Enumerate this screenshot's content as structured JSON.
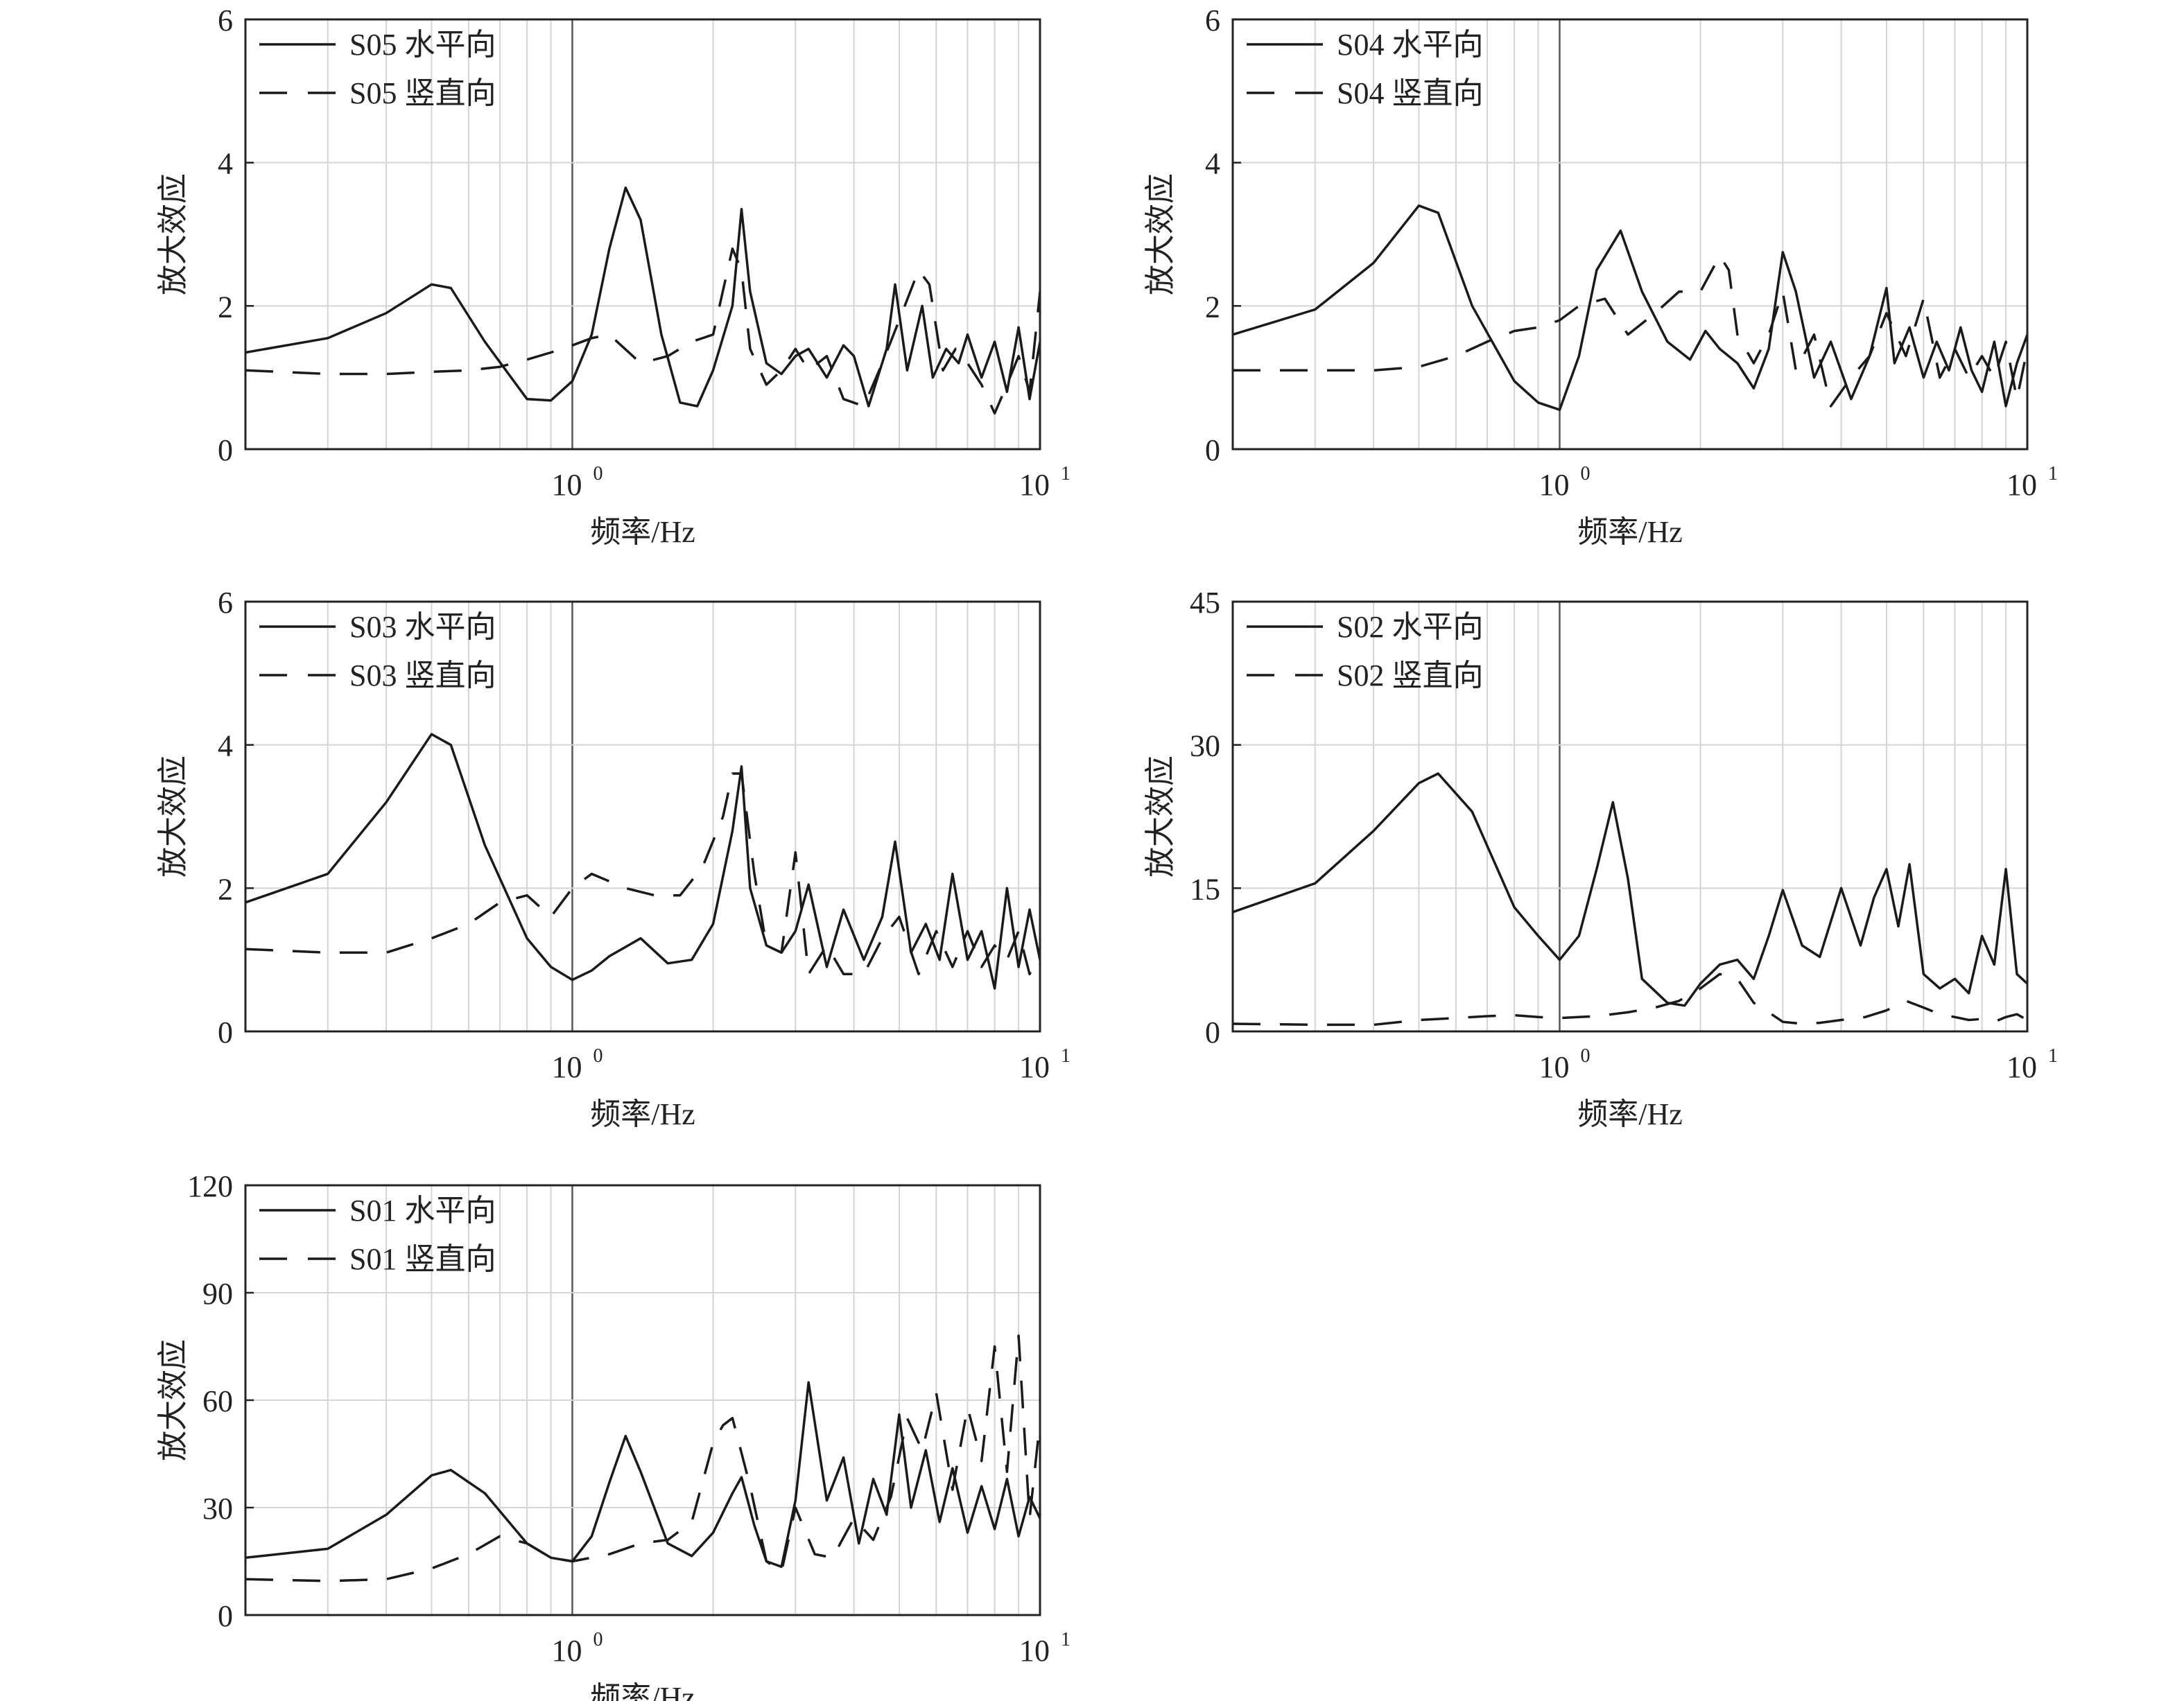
{
  "colors": {
    "line": "#1a1a1a",
    "grid": "#d4d4d4",
    "axis": "#222222"
  },
  "chart_data": [
    {
      "type": "line",
      "xscale": "log",
      "xlim": [
        0.2,
        10
      ],
      "ylim": [
        0,
        6
      ],
      "yticks": [
        "0",
        "2",
        "4",
        "6"
      ],
      "xticks": [
        {
          "base": "10",
          "exp": "0",
          "value": 1
        },
        {
          "base": "10",
          "exp": "1",
          "value": 10
        }
      ],
      "xlabel": "频率/Hz",
      "ylabel": "放大效应",
      "grid": true,
      "legend_position": "top-left",
      "series": [
        {
          "name": "S05 水平向",
          "style": "solid",
          "x": [
            0.2,
            0.3,
            0.4,
            0.5,
            0.55,
            0.65,
            0.8,
            0.9,
            1.0,
            1.1,
            1.2,
            1.3,
            1.4,
            1.55,
            1.7,
            1.85,
            2.0,
            2.2,
            2.3,
            2.4,
            2.6,
            2.8,
            3.0,
            3.2,
            3.5,
            3.8,
            4.0,
            4.3,
            4.7,
            4.9,
            5.2,
            5.6,
            5.9,
            6.3,
            6.7,
            7.0,
            7.5,
            8.0,
            8.5,
            9.0,
            9.5,
            10.0
          ],
          "y": [
            1.35,
            1.55,
            1.9,
            2.3,
            2.25,
            1.5,
            0.7,
            0.68,
            0.95,
            1.6,
            2.8,
            3.65,
            3.2,
            1.6,
            0.65,
            0.6,
            1.1,
            2.0,
            3.35,
            2.2,
            1.2,
            1.05,
            1.3,
            1.4,
            1.0,
            1.45,
            1.3,
            0.6,
            1.4,
            2.3,
            1.1,
            2.0,
            1.0,
            1.4,
            1.2,
            1.6,
            1.0,
            1.5,
            0.8,
            1.7,
            0.7,
            1.5
          ]
        },
        {
          "name": "S05 竖直向",
          "style": "dashed",
          "x": [
            0.2,
            0.3,
            0.4,
            0.5,
            0.6,
            0.7,
            0.8,
            0.9,
            1.0,
            1.1,
            1.2,
            1.4,
            1.6,
            1.8,
            2.0,
            2.2,
            2.3,
            2.4,
            2.6,
            2.8,
            3.0,
            3.2,
            3.5,
            3.8,
            4.2,
            4.6,
            5.0,
            5.5,
            5.8,
            6.2,
            6.6,
            7.0,
            7.5,
            8.0,
            8.5,
            9.0,
            9.5,
            10.0
          ],
          "y": [
            1.1,
            1.05,
            1.05,
            1.08,
            1.1,
            1.15,
            1.25,
            1.35,
            1.45,
            1.55,
            1.6,
            1.2,
            1.3,
            1.5,
            1.6,
            2.8,
            2.5,
            1.4,
            0.9,
            1.1,
            1.4,
            1.1,
            1.3,
            0.7,
            0.6,
            1.2,
            1.8,
            2.5,
            2.3,
            1.1,
            1.4,
            1.2,
            0.9,
            0.5,
            0.9,
            1.3,
            0.8,
            2.2
          ]
        }
      ]
    },
    {
      "type": "line",
      "xscale": "log",
      "xlim": [
        0.2,
        10
      ],
      "ylim": [
        0,
        6
      ],
      "yticks": [
        "0",
        "2",
        "4",
        "6"
      ],
      "xticks": [
        {
          "base": "10",
          "exp": "0",
          "value": 1
        },
        {
          "base": "10",
          "exp": "1",
          "value": 10
        }
      ],
      "xlabel": "频率/Hz",
      "ylabel": "放大效应",
      "grid": true,
      "legend_position": "top-left",
      "series": [
        {
          "name": "S04 水平向",
          "style": "solid",
          "x": [
            0.2,
            0.3,
            0.4,
            0.5,
            0.55,
            0.65,
            0.8,
            0.9,
            1.0,
            1.1,
            1.2,
            1.35,
            1.5,
            1.7,
            1.9,
            2.05,
            2.2,
            2.4,
            2.6,
            2.8,
            3.0,
            3.2,
            3.5,
            3.8,
            4.2,
            4.6,
            5.0,
            5.2,
            5.6,
            6.0,
            6.4,
            6.8,
            7.2,
            7.6,
            8.0,
            8.5,
            9.0,
            9.5,
            10.0
          ],
          "y": [
            1.6,
            1.95,
            2.6,
            3.4,
            3.3,
            2.0,
            0.95,
            0.65,
            0.55,
            1.3,
            2.5,
            3.05,
            2.2,
            1.5,
            1.25,
            1.65,
            1.4,
            1.2,
            0.85,
            1.4,
            2.75,
            2.2,
            1.0,
            1.5,
            0.7,
            1.3,
            2.25,
            1.2,
            1.7,
            1.0,
            1.5,
            1.1,
            1.7,
            1.1,
            0.8,
            1.5,
            0.6,
            1.2,
            1.6
          ]
        },
        {
          "name": "S04 竖直向",
          "style": "dashed",
          "x": [
            0.2,
            0.3,
            0.4,
            0.5,
            0.6,
            0.7,
            0.8,
            0.9,
            1.0,
            1.1,
            1.25,
            1.4,
            1.6,
            1.8,
            2.0,
            2.2,
            2.3,
            2.4,
            2.6,
            2.8,
            3.0,
            3.2,
            3.5,
            3.8,
            4.2,
            4.6,
            5.0,
            5.5,
            6.0,
            6.5,
            7.0,
            7.5,
            8.0,
            8.5,
            9.0,
            9.5,
            10.0
          ],
          "y": [
            1.1,
            1.1,
            1.1,
            1.15,
            1.3,
            1.5,
            1.65,
            1.7,
            1.8,
            2.0,
            2.1,
            1.6,
            1.9,
            2.2,
            2.2,
            2.7,
            2.5,
            1.6,
            1.2,
            1.6,
            2.2,
            1.1,
            1.6,
            0.6,
            1.0,
            1.3,
            1.9,
            1.3,
            2.1,
            1.0,
            1.4,
            1.0,
            1.3,
            1.0,
            1.5,
            0.7,
            1.4
          ]
        }
      ]
    },
    {
      "type": "line",
      "xscale": "log",
      "xlim": [
        0.2,
        10
      ],
      "ylim": [
        0,
        6
      ],
      "yticks": [
        "0",
        "2",
        "4",
        "6"
      ],
      "xticks": [
        {
          "base": "10",
          "exp": "0",
          "value": 1
        },
        {
          "base": "10",
          "exp": "1",
          "value": 10
        }
      ],
      "xlabel": "频率/Hz",
      "ylabel": "放大效应",
      "grid": true,
      "legend_position": "top-left",
      "series": [
        {
          "name": "S03 水平向",
          "style": "solid",
          "x": [
            0.2,
            0.3,
            0.4,
            0.5,
            0.55,
            0.65,
            0.8,
            0.9,
            1.0,
            1.1,
            1.2,
            1.4,
            1.6,
            1.8,
            2.0,
            2.2,
            2.3,
            2.4,
            2.6,
            2.8,
            3.0,
            3.2,
            3.5,
            3.8,
            4.2,
            4.6,
            4.9,
            5.3,
            5.7,
            6.1,
            6.5,
            7.0,
            7.5,
            8.0,
            8.5,
            9.0,
            9.5,
            10.0
          ],
          "y": [
            1.8,
            2.2,
            3.2,
            4.15,
            4.0,
            2.6,
            1.3,
            0.9,
            0.72,
            0.85,
            1.05,
            1.3,
            0.95,
            1.0,
            1.5,
            2.8,
            3.7,
            2.0,
            1.2,
            1.1,
            1.4,
            2.05,
            0.9,
            1.7,
            1.0,
            1.6,
            2.65,
            1.1,
            1.5,
            1.0,
            2.2,
            1.0,
            1.4,
            0.6,
            2.0,
            0.9,
            1.7,
            1.0
          ]
        },
        {
          "name": "S03 竖直向",
          "style": "dashed",
          "x": [
            0.2,
            0.3,
            0.4,
            0.5,
            0.6,
            0.7,
            0.8,
            0.9,
            1.0,
            1.1,
            1.3,
            1.5,
            1.7,
            1.9,
            2.1,
            2.2,
            2.3,
            2.45,
            2.6,
            2.8,
            3.0,
            3.2,
            3.5,
            3.8,
            4.2,
            4.6,
            5.0,
            5.5,
            6.0,
            6.5,
            7.0,
            7.5,
            8.0,
            8.5,
            9.0,
            9.5,
            10.0
          ],
          "y": [
            1.15,
            1.1,
            1.1,
            1.3,
            1.5,
            1.8,
            1.9,
            1.6,
            2.0,
            2.2,
            2.0,
            1.9,
            1.9,
            2.3,
            3.0,
            3.6,
            3.6,
            2.2,
            1.2,
            1.1,
            2.5,
            0.8,
            1.2,
            0.8,
            0.8,
            1.3,
            1.6,
            0.8,
            1.4,
            0.9,
            1.4,
            0.9,
            1.2,
            1.0,
            1.4,
            0.8,
            1.1
          ]
        }
      ]
    },
    {
      "type": "line",
      "xscale": "log",
      "xlim": [
        0.2,
        10
      ],
      "ylim": [
        0,
        45
      ],
      "yticks": [
        "0",
        "15",
        "30",
        "45"
      ],
      "xticks": [
        {
          "base": "10",
          "exp": "0",
          "value": 1
        },
        {
          "base": "10",
          "exp": "1",
          "value": 10
        }
      ],
      "xlabel": "频率/Hz",
      "ylabel": "放大效应",
      "grid": true,
      "legend_position": "top-left",
      "series": [
        {
          "name": "S02 水平向",
          "style": "solid",
          "x": [
            0.2,
            0.3,
            0.4,
            0.5,
            0.55,
            0.65,
            0.8,
            0.9,
            1.0,
            1.1,
            1.2,
            1.3,
            1.4,
            1.5,
            1.7,
            1.85,
            2.0,
            2.2,
            2.4,
            2.6,
            2.8,
            3.0,
            3.3,
            3.6,
            4.0,
            4.4,
            4.7,
            5.0,
            5.3,
            5.6,
            6.0,
            6.5,
            7.0,
            7.5,
            8.0,
            8.5,
            9.0,
            9.5,
            10.0
          ],
          "y": [
            12.5,
            15.5,
            21.0,
            26.0,
            27.0,
            23.0,
            13.0,
            10.0,
            7.5,
            10.0,
            17.0,
            24.0,
            16.0,
            5.5,
            3.0,
            2.7,
            5.0,
            7.0,
            7.5,
            5.5,
            10.0,
            14.8,
            9.0,
            7.8,
            15.0,
            9.0,
            14.0,
            17.0,
            11.0,
            17.5,
            6.0,
            4.5,
            5.5,
            4.0,
            10.0,
            7.0,
            17.0,
            6.0,
            5.0
          ]
        },
        {
          "name": "S02 竖直向",
          "style": "dashed",
          "x": [
            0.2,
            0.3,
            0.4,
            0.5,
            0.6,
            0.7,
            0.8,
            0.9,
            1.0,
            1.2,
            1.4,
            1.6,
            1.8,
            2.0,
            2.2,
            2.4,
            2.6,
            2.8,
            3.0,
            3.3,
            3.6,
            4.0,
            4.5,
            5.0,
            5.5,
            6.0,
            6.5,
            7.0,
            7.5,
            8.0,
            8.5,
            9.0,
            9.5,
            10.0
          ],
          "y": [
            0.8,
            0.7,
            0.7,
            1.2,
            1.4,
            1.6,
            1.7,
            1.5,
            1.4,
            1.6,
            2.0,
            2.5,
            3.2,
            4.5,
            6.0,
            5.5,
            3.0,
            2.0,
            1.0,
            0.8,
            0.9,
            1.2,
            1.5,
            2.2,
            3.2,
            2.5,
            1.8,
            1.5,
            1.2,
            1.3,
            1.0,
            1.5,
            1.8,
            1.2
          ]
        }
      ]
    },
    {
      "type": "line",
      "xscale": "log",
      "xlim": [
        0.2,
        10
      ],
      "ylim": [
        0,
        120
      ],
      "yticks": [
        "0",
        "30",
        "60",
        "90",
        "120"
      ],
      "xticks": [
        {
          "base": "10",
          "exp": "0",
          "value": 1
        },
        {
          "base": "10",
          "exp": "1",
          "value": 10
        }
      ],
      "xlabel": "频率/Hz",
      "ylabel": "放大效应",
      "grid": true,
      "legend_position": "top-left",
      "series": [
        {
          "name": "S01 水平向",
          "style": "solid",
          "x": [
            0.2,
            0.3,
            0.4,
            0.5,
            0.55,
            0.65,
            0.8,
            0.9,
            1.0,
            1.1,
            1.2,
            1.3,
            1.4,
            1.6,
            1.8,
            2.0,
            2.2,
            2.3,
            2.45,
            2.6,
            2.8,
            3.0,
            3.2,
            3.5,
            3.8,
            4.1,
            4.4,
            4.7,
            5.0,
            5.3,
            5.7,
            6.1,
            6.5,
            7.0,
            7.5,
            8.0,
            8.5,
            9.0,
            9.5,
            10.0
          ],
          "y": [
            16.0,
            18.5,
            28.0,
            39.0,
            40.5,
            34.0,
            20.0,
            16.0,
            15.0,
            22.0,
            37.0,
            50.0,
            40.0,
            20.0,
            16.5,
            23.0,
            34.0,
            38.5,
            25.0,
            15.0,
            13.5,
            32.0,
            65.0,
            32.0,
            44.0,
            20.0,
            38.0,
            28.0,
            56.0,
            30.0,
            46.0,
            26.0,
            41.0,
            23.0,
            36.0,
            24.0,
            38.0,
            22.0,
            33.0,
            27.0
          ]
        },
        {
          "name": "S01 竖直向",
          "style": "dashed",
          "x": [
            0.2,
            0.3,
            0.4,
            0.5,
            0.6,
            0.7,
            0.8,
            0.9,
            1.0,
            1.2,
            1.4,
            1.6,
            1.8,
            2.0,
            2.1,
            2.2,
            2.4,
            2.6,
            2.8,
            3.0,
            3.3,
            3.6,
            4.0,
            4.4,
            4.8,
            5.2,
            5.6,
            6.0,
            6.5,
            7.0,
            7.5,
            8.0,
            8.5,
            9.0,
            9.5,
            10.0
          ],
          "y": [
            10.0,
            9.5,
            10.0,
            13.0,
            17.0,
            22.0,
            20.0,
            16.0,
            15.0,
            17.0,
            20.0,
            21.0,
            26.0,
            48.0,
            53.0,
            55.0,
            36.0,
            15.0,
            12.0,
            30.0,
            17.0,
            16.0,
            27.0,
            21.0,
            33.0,
            55.0,
            46.0,
            62.0,
            35.0,
            58.0,
            43.0,
            75.0,
            40.0,
            78.0,
            27.0,
            54.0
          ]
        }
      ]
    }
  ]
}
